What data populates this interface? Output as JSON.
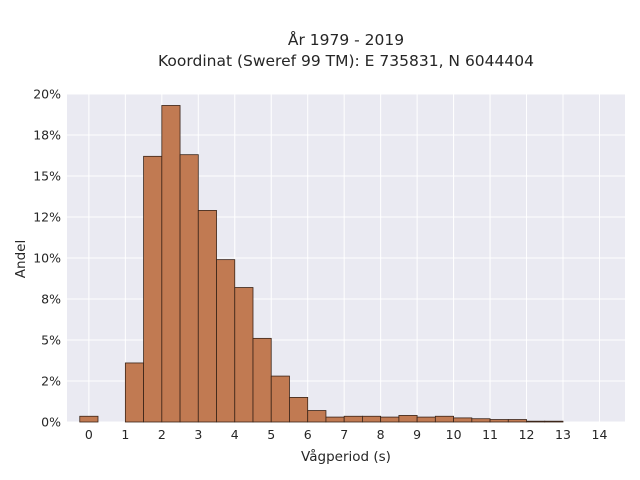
{
  "chart_data": {
    "type": "bar",
    "title": "År 1979 - 2019",
    "subtitle": "Koordinat (Sweref 99 TM): E 735831, N 6044404",
    "xlabel": "Vågperiod (s)",
    "ylabel": "Andel",
    "xlim": [
      -0.6,
      14.7
    ],
    "ylim": [
      0,
      20
    ],
    "x_ticks": [
      0,
      1,
      2,
      3,
      4,
      5,
      6,
      7,
      8,
      9,
      10,
      11,
      12,
      13,
      14
    ],
    "x_tick_labels": [
      "0",
      "1",
      "2",
      "3",
      "4",
      "5",
      "6",
      "7",
      "8",
      "9",
      "10",
      "11",
      "12",
      "13",
      "14"
    ],
    "y_ticks": [
      0,
      2.5,
      5,
      7.5,
      10,
      12.5,
      15,
      17.5,
      20
    ],
    "y_tick_labels": [
      "0%",
      "2%",
      "5%",
      "8%",
      "10%",
      "12%",
      "15%",
      "18%",
      "20%"
    ],
    "grid": true,
    "bin_width": 0.5,
    "bins": [
      {
        "x": 0.0,
        "value": 0.35
      },
      {
        "x": 1.25,
        "value": 3.6
      },
      {
        "x": 1.75,
        "value": 16.2
      },
      {
        "x": 2.25,
        "value": 19.3
      },
      {
        "x": 2.75,
        "value": 16.3
      },
      {
        "x": 3.25,
        "value": 12.9
      },
      {
        "x": 3.75,
        "value": 9.9
      },
      {
        "x": 4.25,
        "value": 8.2
      },
      {
        "x": 4.75,
        "value": 5.1
      },
      {
        "x": 5.25,
        "value": 2.8
      },
      {
        "x": 5.75,
        "value": 1.5
      },
      {
        "x": 6.25,
        "value": 0.7
      },
      {
        "x": 6.75,
        "value": 0.3
      },
      {
        "x": 7.25,
        "value": 0.35
      },
      {
        "x": 7.75,
        "value": 0.35
      },
      {
        "x": 8.25,
        "value": 0.3
      },
      {
        "x": 8.75,
        "value": 0.4
      },
      {
        "x": 9.25,
        "value": 0.3
      },
      {
        "x": 9.75,
        "value": 0.35
      },
      {
        "x": 10.25,
        "value": 0.25
      },
      {
        "x": 10.75,
        "value": 0.2
      },
      {
        "x": 11.25,
        "value": 0.15
      },
      {
        "x": 11.75,
        "value": 0.15
      },
      {
        "x": 12.25,
        "value": 0.05
      },
      {
        "x": 12.75,
        "value": 0.05
      }
    ],
    "colors": {
      "bar_fill": "#c17a52",
      "bar_edge": "#3a2418",
      "plot_background": "#eaeaf2",
      "grid": "#ffffff"
    }
  }
}
